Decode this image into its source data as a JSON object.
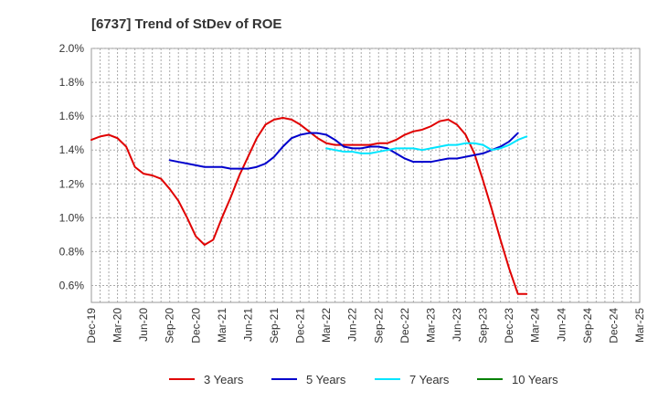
{
  "chart_data": {
    "type": "line",
    "title": "[6737]  Trend of StDev of ROE",
    "xlabel": "",
    "ylabel": "",
    "x_ticks": [
      "Dec-19",
      "Mar-20",
      "Jun-20",
      "Sep-20",
      "Dec-20",
      "Mar-21",
      "Jun-21",
      "Sep-21",
      "Dec-21",
      "Mar-22",
      "Jun-22",
      "Sep-22",
      "Dec-22",
      "Mar-23",
      "Jun-23",
      "Sep-23",
      "Dec-23",
      "Mar-24",
      "Jun-24",
      "Sep-24",
      "Dec-24",
      "Mar-25"
    ],
    "y_ticks": [
      "0.6%",
      "0.8%",
      "1.0%",
      "1.2%",
      "1.4%",
      "1.6%",
      "1.8%",
      "2.0%"
    ],
    "ylim": [
      0.5,
      2.0
    ],
    "grid": true,
    "legend_position": "bottom",
    "x_unit": "month index from Dec-19",
    "series": [
      {
        "name": "3 Years",
        "color": "#e00000",
        "x": [
          0,
          1,
          2,
          3,
          4,
          5,
          6,
          7,
          8,
          9,
          10,
          11,
          12,
          13,
          14,
          15,
          16,
          17,
          18,
          19,
          20,
          21,
          22,
          23,
          24,
          25,
          26,
          27,
          28,
          29,
          30,
          31,
          32,
          33,
          34,
          35,
          36,
          37,
          38,
          39,
          40,
          41,
          42,
          43,
          44,
          45,
          46,
          47,
          48,
          49,
          50,
          51,
          52,
          53,
          54,
          55,
          56,
          57,
          58,
          59,
          60
        ],
        "y": [
          1.46,
          1.48,
          1.49,
          1.47,
          1.42,
          1.3,
          1.26,
          1.25,
          1.23,
          1.17,
          1.1,
          1.0,
          0.89,
          0.84,
          0.87,
          1.0,
          1.12,
          1.25,
          1.36,
          1.47,
          1.55,
          1.58,
          1.59,
          1.58,
          1.55,
          1.51,
          1.47,
          1.44,
          1.43,
          1.43,
          1.43,
          1.43,
          1.43,
          1.44,
          1.44,
          1.46,
          1.49,
          1.51,
          1.52,
          1.54,
          1.57,
          1.58,
          1.55,
          1.49,
          1.38,
          1.22,
          1.05,
          0.87,
          0.7,
          0.55,
          0.55,
          null,
          null,
          null,
          null,
          null,
          null,
          null,
          null,
          null,
          null
        ]
      },
      {
        "name": "5 Years",
        "color": "#0000cc",
        "x": [
          9,
          10,
          11,
          12,
          13,
          14,
          15,
          16,
          17,
          18,
          19,
          20,
          21,
          22,
          23,
          24,
          25,
          26,
          27,
          28,
          29,
          30,
          31,
          32,
          33,
          34,
          35,
          36,
          37,
          38,
          39,
          40,
          41,
          42,
          43,
          44,
          45,
          46,
          47,
          48,
          49,
          50,
          51,
          52,
          53,
          54,
          55,
          56,
          57,
          58,
          59,
          60
        ],
        "y": [
          1.34,
          1.33,
          1.32,
          1.31,
          1.3,
          1.3,
          1.3,
          1.29,
          1.29,
          1.29,
          1.3,
          1.32,
          1.36,
          1.42,
          1.47,
          1.49,
          1.5,
          1.5,
          1.49,
          1.46,
          1.42,
          1.41,
          1.41,
          1.42,
          1.42,
          1.41,
          1.38,
          1.35,
          1.33,
          1.33,
          1.33,
          1.34,
          1.35,
          1.35,
          1.36,
          1.37,
          1.38,
          1.4,
          1.42,
          1.45,
          1.5,
          null,
          null,
          null,
          null,
          null,
          null,
          null,
          null,
          null,
          null,
          null
        ]
      },
      {
        "name": "7 Years",
        "color": "#00e5ff",
        "x": [
          27,
          28,
          29,
          30,
          31,
          32,
          33,
          34,
          35,
          36,
          37,
          38,
          39,
          40,
          41,
          42,
          43,
          44,
          45,
          46,
          47,
          48,
          49,
          50,
          51,
          52,
          53,
          54,
          55,
          56,
          57,
          58,
          59,
          60
        ],
        "y": [
          1.41,
          1.4,
          1.39,
          1.39,
          1.38,
          1.38,
          1.39,
          1.4,
          1.41,
          1.41,
          1.41,
          1.4,
          1.41,
          1.42,
          1.43,
          1.43,
          1.44,
          1.44,
          1.43,
          1.4,
          1.41,
          1.43,
          1.46,
          1.48,
          null,
          null,
          null,
          null,
          null,
          null,
          null,
          null,
          null,
          null
        ]
      },
      {
        "name": "10 Years",
        "color": "#008000",
        "x": [],
        "y": []
      }
    ]
  }
}
